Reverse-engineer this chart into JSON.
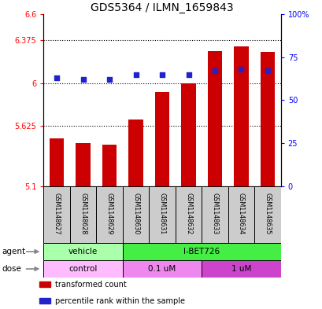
{
  "title": "GDS5364 / ILMN_1659843",
  "samples": [
    "GSM1148627",
    "GSM1148628",
    "GSM1148629",
    "GSM1148630",
    "GSM1148631",
    "GSM1148632",
    "GSM1148633",
    "GSM1148634",
    "GSM1148635"
  ],
  "bar_values": [
    5.52,
    5.48,
    5.46,
    5.68,
    5.92,
    6.0,
    6.28,
    6.32,
    6.27
  ],
  "dot_values": [
    63,
    62,
    62,
    65,
    65,
    65,
    67,
    68,
    67
  ],
  "bar_color": "#cc0000",
  "dot_color": "#2222cc",
  "ylim_left": [
    5.1,
    6.6
  ],
  "ylim_right": [
    0,
    100
  ],
  "yticks_left": [
    5.1,
    5.625,
    6.0,
    6.375,
    6.6
  ],
  "ytick_labels_left": [
    "5.1",
    "5.625",
    "6",
    "6.375",
    "6.6"
  ],
  "yticks_right": [
    0,
    25,
    50,
    75,
    100
  ],
  "ytick_labels_right": [
    "0",
    "25",
    "50",
    "75",
    "100%"
  ],
  "grid_lines": [
    5.625,
    6.0,
    6.375
  ],
  "agent_labels": [
    {
      "text": "vehicle",
      "start": 0,
      "end": 2,
      "color": "#aaffaa"
    },
    {
      "text": "I-BET726",
      "start": 3,
      "end": 8,
      "color": "#44ee44"
    }
  ],
  "dose_labels": [
    {
      "text": "control",
      "start": 0,
      "end": 2,
      "color": "#ffbbff"
    },
    {
      "text": "0.1 uM",
      "start": 3,
      "end": 5,
      "color": "#ee88ee"
    },
    {
      "text": "1 uM",
      "start": 6,
      "end": 8,
      "color": "#cc44cc"
    }
  ],
  "legend_items": [
    {
      "label": "transformed count",
      "color": "#cc0000"
    },
    {
      "label": "percentile rank within the sample",
      "color": "#2222cc"
    }
  ],
  "bar_bottom": 5.1,
  "background_color": "#ffffff",
  "sample_box_color": "#cccccc"
}
